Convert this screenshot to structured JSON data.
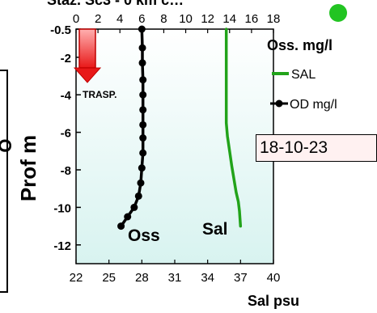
{
  "header": {
    "title_partial": "Staz. Sc3 - 0 km c…"
  },
  "date_box": "18-10-23",
  "legend": {
    "title": "Oss. mg/l",
    "items": [
      {
        "label": "SAL",
        "color": "#22a31a",
        "marker": "line"
      },
      {
        "label": "OD mg/l",
        "color": "#000000",
        "marker": "line-dot"
      }
    ]
  },
  "annotations": {
    "transparency": "TRASP.",
    "oss_label": "Oss",
    "sal_label": "Sal"
  },
  "status_dot_color": "#22c422",
  "chart_data": {
    "type": "line",
    "ylabel": "Prof m",
    "y_axis": {
      "range": [
        -13,
        -0.5
      ],
      "ticks": [
        -0.5,
        -2,
        -4,
        -6,
        -8,
        -10,
        -12
      ]
    },
    "top_axis": {
      "label": "Oss. mg/l",
      "range": [
        0,
        18
      ],
      "ticks": [
        0,
        2,
        4,
        6,
        8,
        10,
        12,
        14,
        16,
        18
      ]
    },
    "bottom_axis": {
      "label": "Sal psu",
      "range": [
        22,
        40
      ],
      "ticks": [
        22,
        25,
        28,
        31,
        34,
        37,
        40
      ]
    },
    "transparency_depth_m": -3,
    "series": [
      {
        "name": "SAL",
        "axis": "bottom",
        "color": "#22a31a",
        "x": [
          35.7,
          35.7,
          35.7,
          35.7,
          35.7,
          35.7,
          35.8,
          36.0,
          36.2,
          36.4,
          36.6,
          36.8,
          36.9,
          37.0
        ],
        "y": [
          -0.5,
          -1.5,
          -2.5,
          -3.5,
          -4.5,
          -5.5,
          -6.2,
          -7.0,
          -7.8,
          -8.5,
          -9.2,
          -9.7,
          -10.2,
          -11.0
        ]
      },
      {
        "name": "OD mg/l",
        "axis": "top",
        "color": "#000000",
        "markers": true,
        "x": [
          6.0,
          6.05,
          6.05,
          6.1,
          6.1,
          6.1,
          6.1,
          6.1,
          6.1,
          6.0,
          5.9,
          5.7,
          5.3,
          4.7,
          4.1
        ],
        "y": [
          -0.5,
          -1.5,
          -2.3,
          -3.2,
          -4.0,
          -4.8,
          -5.6,
          -6.3,
          -7.1,
          -7.9,
          -8.7,
          -9.4,
          -10.0,
          -10.5,
          -11.0
        ]
      }
    ],
    "background": {
      "top": "#ffffff",
      "bottom": "#d8f3f0"
    }
  }
}
